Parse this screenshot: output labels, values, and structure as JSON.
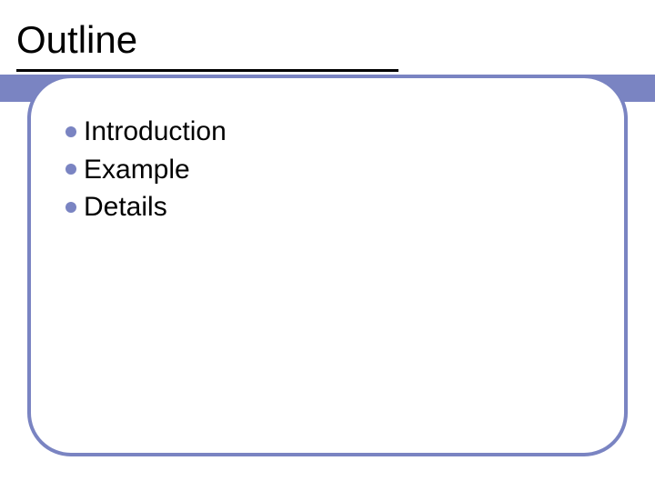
{
  "slide": {
    "title": "Outline",
    "title_fontsize": 42,
    "title_color": "#000000",
    "band_color": "#7a84c2",
    "underline_color": "#000000",
    "frame_border_color": "#7a84c2",
    "frame_border_width": 4,
    "frame_border_radius": 48,
    "background_color": "#ffffff",
    "bullets": {
      "color": "#7a84c2",
      "dot_diameter": 12,
      "text_fontsize": 30,
      "text_color": "#000000",
      "items": [
        {
          "label": "Introduction"
        },
        {
          "label": "Example"
        },
        {
          "label": "Details"
        }
      ]
    }
  }
}
